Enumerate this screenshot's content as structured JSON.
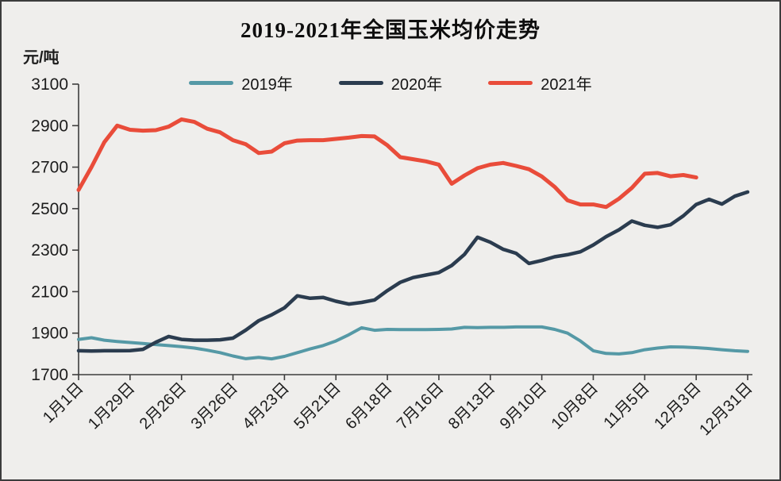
{
  "window": {
    "background": "#efeeec",
    "frame_color": "#3c3c3c"
  },
  "axis": {
    "color": "#3d3d3d",
    "tick_label_color": "#1c1c1c"
  },
  "chart_data": {
    "type": "line",
    "title": "2019-2021年全国玉米均价走势",
    "unit_label": "元/吨",
    "xlabel": "",
    "ylabel": "元/吨",
    "ylim": [
      1700,
      3100
    ],
    "y_ticks": [
      3100,
      2900,
      2700,
      2500,
      2300,
      2100,
      1900,
      1700
    ],
    "grid": false,
    "legend_position": "top-center",
    "n_points": 53,
    "x_tick_every": 4,
    "x_tick_labels": [
      "1月1日",
      "1月29日",
      "2月26日",
      "3月26日",
      "4月23日",
      "5月21日",
      "6月18日",
      "7月16日",
      "8月13日",
      "9月10日",
      "10月8日",
      "11月5日",
      "12月3日",
      "12月31日"
    ],
    "series": [
      {
        "name": "2019年",
        "color": "#5599A6",
        "values": [
          1870,
          1878,
          1866,
          1860,
          1855,
          1850,
          1845,
          1840,
          1835,
          1828,
          1818,
          1806,
          1790,
          1777,
          1783,
          1776,
          1788,
          1806,
          1824,
          1840,
          1862,
          1892,
          1926,
          1914,
          1918,
          1917,
          1917,
          1917,
          1918,
          1920,
          1928,
          1927,
          1928,
          1928,
          1930,
          1930,
          1930,
          1918,
          1900,
          1862,
          1815,
          1802,
          1800,
          1806,
          1820,
          1828,
          1834,
          1833,
          1830,
          1826,
          1820,
          1815,
          1812
        ]
      },
      {
        "name": "2020年",
        "color": "#2B3C4F",
        "values": [
          1815,
          1814,
          1815,
          1815,
          1816,
          1822,
          1856,
          1884,
          1870,
          1866,
          1866,
          1868,
          1876,
          1915,
          1960,
          1988,
          2022,
          2080,
          2068,
          2072,
          2054,
          2040,
          2048,
          2060,
          2105,
          2145,
          2168,
          2180,
          2192,
          2226,
          2280,
          2362,
          2338,
          2304,
          2285,
          2236,
          2250,
          2268,
          2278,
          2292,
          2325,
          2365,
          2398,
          2440,
          2420,
          2410,
          2422,
          2465,
          2520,
          2545,
          2522,
          2560,
          2580
        ]
      },
      {
        "name": "2021年",
        "color": "#E94C3A",
        "values": [
          2590,
          2700,
          2820,
          2900,
          2880,
          2876,
          2878,
          2895,
          2930,
          2918,
          2885,
          2868,
          2830,
          2810,
          2768,
          2775,
          2815,
          2828,
          2830,
          2830,
          2836,
          2842,
          2850,
          2848,
          2805,
          2748,
          2738,
          2728,
          2712,
          2620,
          2660,
          2695,
          2712,
          2720,
          2706,
          2690,
          2655,
          2605,
          2540,
          2520,
          2520,
          2508,
          2548,
          2600,
          2668,
          2672,
          2656,
          2662,
          2650
        ]
      }
    ]
  }
}
